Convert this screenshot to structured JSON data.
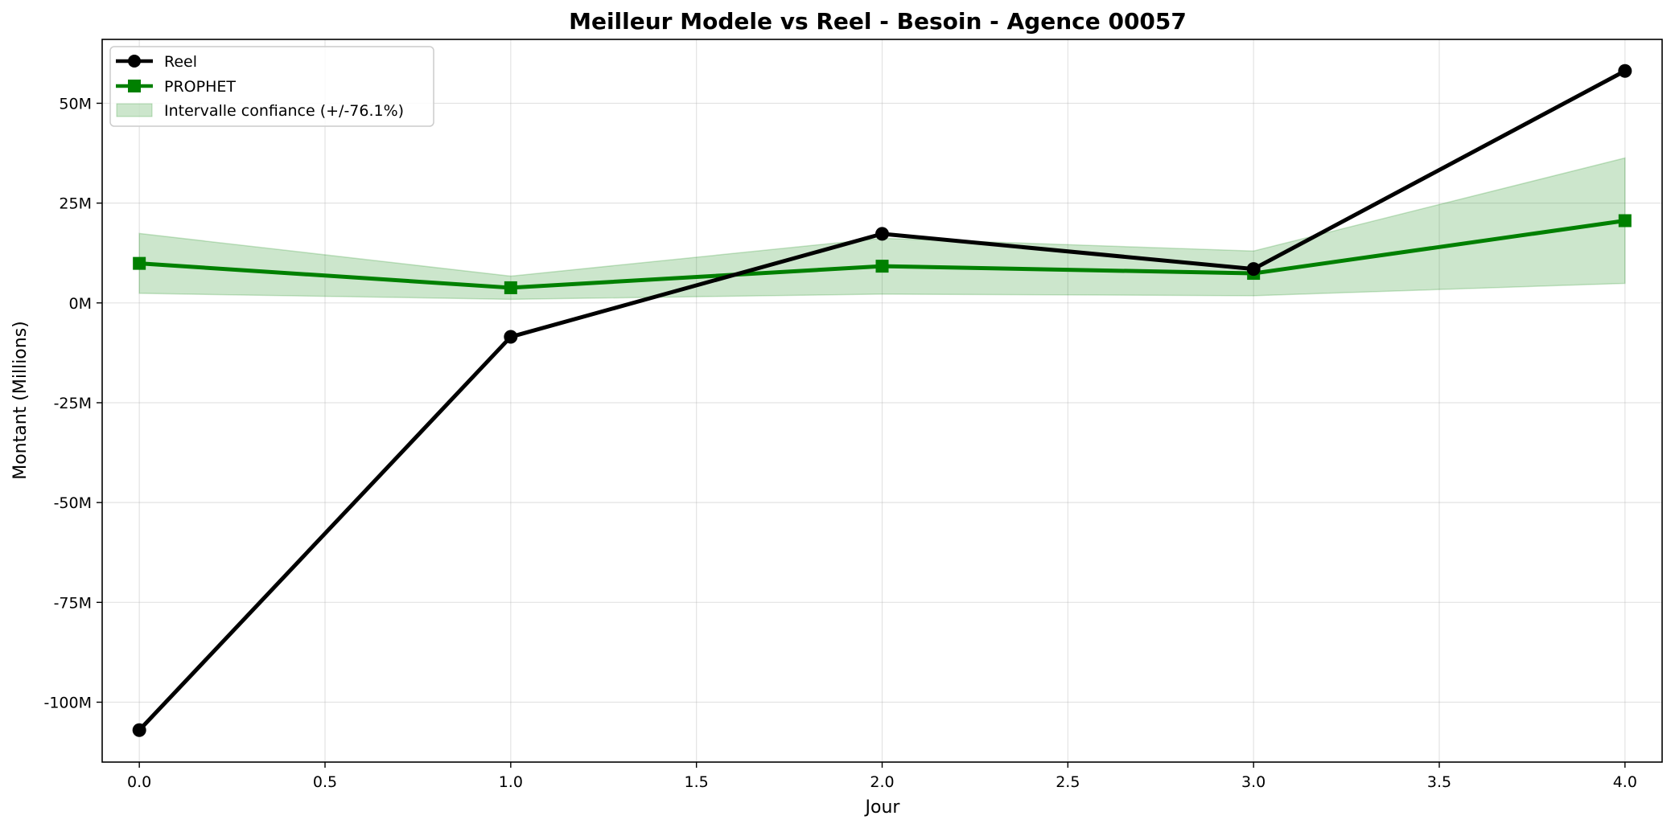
{
  "chart_data": {
    "type": "line",
    "title": "Meilleur Modele vs Reel - Besoin - Agence 00057",
    "xlabel": "Jour",
    "ylabel": "Montant (Millions)",
    "x": [
      0,
      1,
      2,
      3,
      4
    ],
    "xlim": [
      -0.1,
      4.1
    ],
    "ylim": [
      -115,
      66
    ],
    "x_ticks": [
      0.0,
      0.5,
      1.0,
      1.5,
      2.0,
      2.5,
      3.0,
      3.5,
      4.0
    ],
    "x_tick_labels": [
      "0.0",
      "0.5",
      "1.0",
      "1.5",
      "2.0",
      "2.5",
      "3.0",
      "3.5",
      "4.0"
    ],
    "y_ticks": [
      -100,
      -75,
      -50,
      -25,
      0,
      25,
      50
    ],
    "y_tick_labels": [
      "-100M",
      "-75M",
      "-50M",
      "-25M",
      "0M",
      "25M",
      "50M"
    ],
    "grid": true,
    "legend_position": "top-left",
    "series": [
      {
        "name": "Reel",
        "values": [
          -107,
          -8.5,
          17.3,
          8.5,
          58.1
        ],
        "color": "#000000",
        "marker": "circle"
      },
      {
        "name": "PROPHET",
        "values": [
          9.9,
          3.8,
          9.2,
          7.4,
          20.6
        ],
        "color": "#008000",
        "marker": "square"
      }
    ],
    "band": {
      "name": "Intervalle confiance (+/-76.1%)",
      "lower": [
        2.4,
        0.9,
        2.2,
        1.8,
        4.9
      ],
      "upper": [
        17.4,
        6.7,
        16.2,
        13.0,
        36.3
      ],
      "color": "#008000",
      "opacity": 0.2
    }
  }
}
